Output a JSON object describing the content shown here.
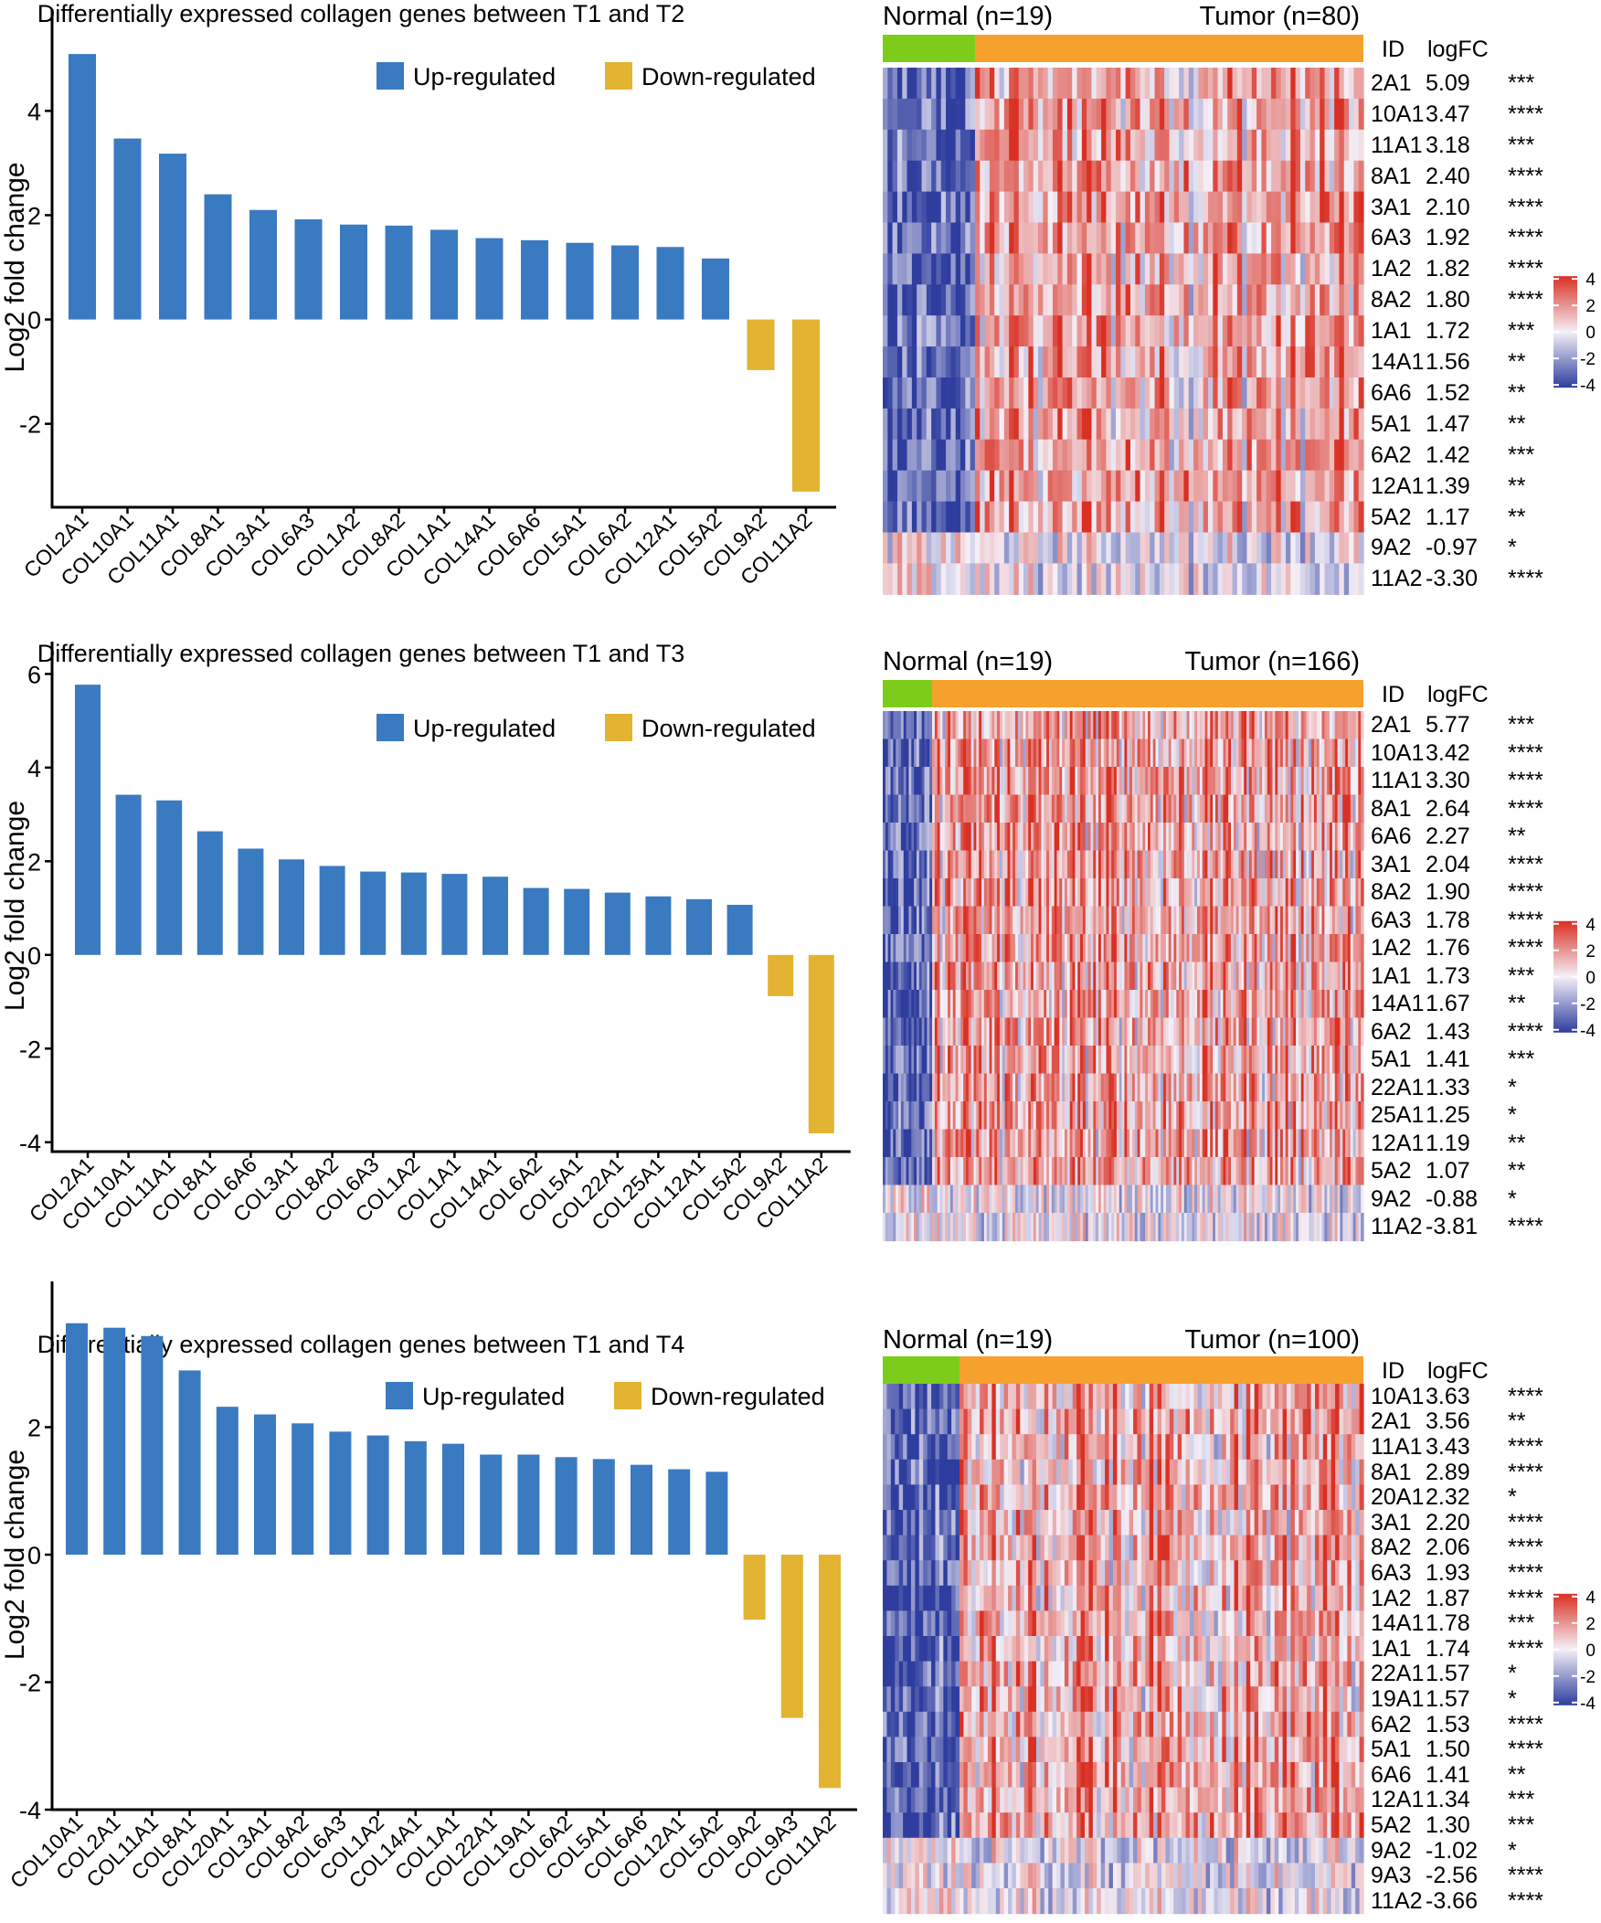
{
  "colors": {
    "up": "#3a7ac0",
    "down": "#e3b431",
    "normal": "#7dcc1a",
    "tumor": "#f6a12e",
    "heat_low": "#2e3d9e",
    "heat_mid": "#f4f0f8",
    "heat_high": "#d93023"
  },
  "common": {
    "ylabel": "Log2 fold change",
    "legend_up": "Up-regulated",
    "legend_down": "Down-regulated",
    "col_id": "ID",
    "col_logfc": "logFC",
    "normal_label": "Normal (n=19)",
    "scale_ticks": [
      "4",
      "2",
      "0",
      "-2",
      "-4"
    ]
  },
  "chart_data": [
    {
      "type": "bar",
      "title": "Differentially expressed collagen genes between T1 and T2",
      "xlabel": "",
      "ylabel": "Log2 fold change",
      "ylim": [
        -3.6,
        5.6
      ],
      "yticks": [
        -2,
        0,
        2,
        4
      ],
      "categories": [
        "COL2A1",
        "COL10A1",
        "COL11A1",
        "COL8A1",
        "COL3A1",
        "COL6A3",
        "COL1A2",
        "COL8A2",
        "COL1A1",
        "COL14A1",
        "COL6A6",
        "COL5A1",
        "COL6A2",
        "COL12A1",
        "COL5A2",
        "COL9A2",
        "COL11A2"
      ],
      "values": [
        5.09,
        3.47,
        3.18,
        2.4,
        2.1,
        1.92,
        1.82,
        1.8,
        1.72,
        1.56,
        1.52,
        1.47,
        1.42,
        1.39,
        1.17,
        -0.97,
        -3.3
      ],
      "heatmap": {
        "normal_label": "Normal (n=19)",
        "tumor_label": "Tumor (n=80)",
        "n_normal": 19,
        "n_tumor": 80,
        "rows": [
          {
            "id": "2A1",
            "logfc": "5.09",
            "sig": "***"
          },
          {
            "id": "10A1",
            "logfc": "3.47",
            "sig": "****"
          },
          {
            "id": "11A1",
            "logfc": "3.18",
            "sig": "***"
          },
          {
            "id": "8A1",
            "logfc": "2.40",
            "sig": "****"
          },
          {
            "id": "3A1",
            "logfc": "2.10",
            "sig": "****"
          },
          {
            "id": "6A3",
            "logfc": "1.92",
            "sig": "****"
          },
          {
            "id": "1A2",
            "logfc": "1.82",
            "sig": "****"
          },
          {
            "id": "8A2",
            "logfc": "1.80",
            "sig": "****"
          },
          {
            "id": "1A1",
            "logfc": "1.72",
            "sig": "***"
          },
          {
            "id": "14A1",
            "logfc": "1.56",
            "sig": "**"
          },
          {
            "id": "6A6",
            "logfc": "1.52",
            "sig": "**"
          },
          {
            "id": "5A1",
            "logfc": "1.47",
            "sig": "**"
          },
          {
            "id": "6A2",
            "logfc": "1.42",
            "sig": "***"
          },
          {
            "id": "12A1",
            "logfc": "1.39",
            "sig": "**"
          },
          {
            "id": "5A2",
            "logfc": "1.17",
            "sig": "**"
          },
          {
            "id": "9A2",
            "logfc": "-0.97",
            "sig": "*"
          },
          {
            "id": "11A2",
            "logfc": "-3.30",
            "sig": "****"
          }
        ]
      }
    },
    {
      "type": "bar",
      "title": "Differentially expressed collagen genes between T1 and T3",
      "xlabel": "",
      "ylabel": "Log2 fold change",
      "ylim": [
        -4.2,
        6.3
      ],
      "yticks": [
        -4,
        -2,
        0,
        2,
        4,
        6
      ],
      "categories": [
        "COL2A1",
        "COL10A1",
        "COL11A1",
        "COL8A1",
        "COL6A6",
        "COL3A1",
        "COL8A2",
        "COL6A3",
        "COL1A2",
        "COL1A1",
        "COL14A1",
        "COL6A2",
        "COL5A1",
        "COL22A1",
        "COL25A1",
        "COL12A1",
        "COL5A2",
        "COL9A2",
        "COL11A2"
      ],
      "values": [
        5.77,
        3.42,
        3.3,
        2.64,
        2.27,
        2.04,
        1.9,
        1.78,
        1.76,
        1.73,
        1.67,
        1.43,
        1.41,
        1.33,
        1.25,
        1.19,
        1.07,
        -0.88,
        -3.81
      ],
      "heatmap": {
        "normal_label": "Normal (n=19)",
        "tumor_label": "Tumor (n=166)",
        "n_normal": 19,
        "n_tumor": 166,
        "rows": [
          {
            "id": "2A1",
            "logfc": "5.77",
            "sig": "***"
          },
          {
            "id": "10A1",
            "logfc": "3.42",
            "sig": "****"
          },
          {
            "id": "11A1",
            "logfc": "3.30",
            "sig": "****"
          },
          {
            "id": "8A1",
            "logfc": "2.64",
            "sig": "****"
          },
          {
            "id": "6A6",
            "logfc": "2.27",
            "sig": "**"
          },
          {
            "id": "3A1",
            "logfc": "2.04",
            "sig": "****"
          },
          {
            "id": "8A2",
            "logfc": "1.90",
            "sig": "****"
          },
          {
            "id": "6A3",
            "logfc": "1.78",
            "sig": "****"
          },
          {
            "id": "1A2",
            "logfc": "1.76",
            "sig": "****"
          },
          {
            "id": "1A1",
            "logfc": "1.73",
            "sig": "***"
          },
          {
            "id": "14A1",
            "logfc": "1.67",
            "sig": "**"
          },
          {
            "id": "6A2",
            "logfc": "1.43",
            "sig": "****"
          },
          {
            "id": "5A1",
            "logfc": "1.41",
            "sig": "***"
          },
          {
            "id": "22A1",
            "logfc": "1.33",
            "sig": "*"
          },
          {
            "id": "25A1",
            "logfc": "1.25",
            "sig": "*"
          },
          {
            "id": "12A1",
            "logfc": "1.19",
            "sig": "**"
          },
          {
            "id": "5A2",
            "logfc": "1.07",
            "sig": "**"
          },
          {
            "id": "9A2",
            "logfc": "-0.88",
            "sig": "*"
          },
          {
            "id": "11A2",
            "logfc": "-3.81",
            "sig": "****"
          }
        ]
      }
    },
    {
      "type": "bar",
      "title": "Differentially expressed collagen genes between T1 and T4",
      "xlabel": "",
      "ylabel": "Log2 fold change",
      "ylim": [
        -4.0,
        4.0
      ],
      "yticks": [
        -4,
        -2,
        0,
        2
      ],
      "categories": [
        "COL10A1",
        "COL2A1",
        "COL11A1",
        "COL8A1",
        "COL20A1",
        "COL3A1",
        "COL8A2",
        "COL6A3",
        "COL1A2",
        "COL14A1",
        "COL1A1",
        "COL22A1",
        "COL19A1",
        "COL6A2",
        "COL5A1",
        "COL6A6",
        "COL12A1",
        "COL5A2",
        "COL9A2",
        "COL9A3",
        "COL11A2"
      ],
      "values": [
        3.63,
        3.56,
        3.43,
        2.89,
        2.32,
        2.2,
        2.06,
        1.93,
        1.87,
        1.78,
        1.74,
        1.57,
        1.57,
        1.53,
        1.5,
        1.41,
        1.34,
        1.3,
        -1.02,
        -2.56,
        -3.66
      ],
      "heatmap": {
        "normal_label": "Normal (n=19)",
        "tumor_label": "Tumor (n=100)",
        "n_normal": 19,
        "n_tumor": 100,
        "rows": [
          {
            "id": "10A1",
            "logfc": "3.63",
            "sig": "****"
          },
          {
            "id": "2A1",
            "logfc": "3.56",
            "sig": "**"
          },
          {
            "id": "11A1",
            "logfc": "3.43",
            "sig": "****"
          },
          {
            "id": "8A1",
            "logfc": "2.89",
            "sig": "****"
          },
          {
            "id": "20A1",
            "logfc": "2.32",
            "sig": "*"
          },
          {
            "id": "3A1",
            "logfc": "2.20",
            "sig": "****"
          },
          {
            "id": "8A2",
            "logfc": "2.06",
            "sig": "****"
          },
          {
            "id": "6A3",
            "logfc": "1.93",
            "sig": "****"
          },
          {
            "id": "1A2",
            "logfc": "1.87",
            "sig": "****"
          },
          {
            "id": "14A1",
            "logfc": "1.78",
            "sig": "***"
          },
          {
            "id": "1A1",
            "logfc": "1.74",
            "sig": "****"
          },
          {
            "id": "22A1",
            "logfc": "1.57",
            "sig": "*"
          },
          {
            "id": "19A1",
            "logfc": "1.57",
            "sig": "*"
          },
          {
            "id": "6A2",
            "logfc": "1.53",
            "sig": "****"
          },
          {
            "id": "5A1",
            "logfc": "1.50",
            "sig": "****"
          },
          {
            "id": "6A6",
            "logfc": "1.41",
            "sig": "**"
          },
          {
            "id": "12A1",
            "logfc": "1.34",
            "sig": "***"
          },
          {
            "id": "5A2",
            "logfc": "1.30",
            "sig": "***"
          },
          {
            "id": "9A2",
            "logfc": "-1.02",
            "sig": "*"
          },
          {
            "id": "9A3",
            "logfc": "-2.56",
            "sig": "****"
          },
          {
            "id": "11A2",
            "logfc": "-3.66",
            "sig": "****"
          }
        ]
      }
    }
  ]
}
